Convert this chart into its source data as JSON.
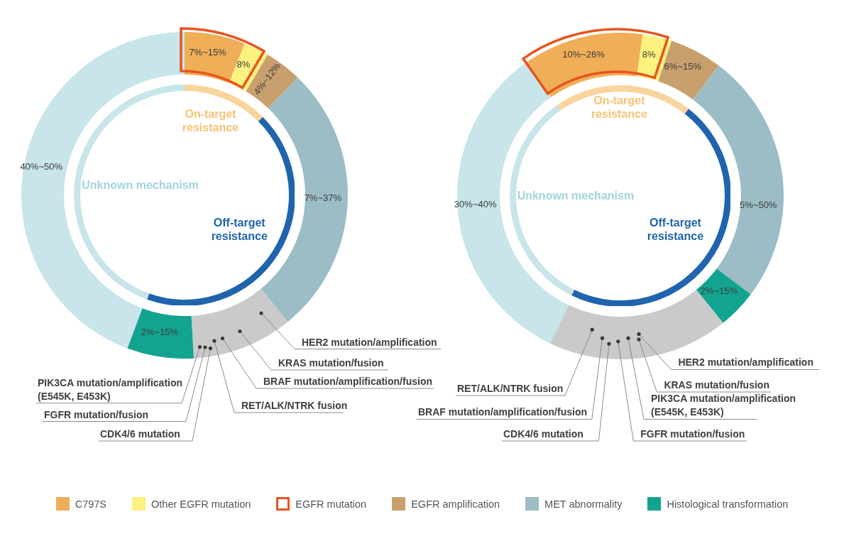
{
  "chart_data": [
    {
      "type": "donut",
      "categories": [
        "C797S",
        "Other EGFR mutation",
        "EGFR amplification",
        "MET abnormality",
        null,
        "Histological transformation",
        null
      ],
      "values": [
        6,
        2.5,
        3.7,
        26.9,
        10,
        6.6,
        44.3
      ],
      "colors": [
        "#efae57",
        "#fdf17f",
        "#c8a06e",
        "#9cbcc6",
        "#cacaca",
        "#13a391",
        "#c7e5ea"
      ],
      "annotations": [
        "7%~15%",
        "8%",
        "4%~12%",
        "7%~37%",
        "2%~15%",
        "40%~50%",
        "HER2 mutation/amplification",
        "KRAS mutation/fusion",
        "BRAF mutation/amplification/fusion",
        "RET/ALK/NTRK fusion",
        "PIK3CA mutation/amplification (E545K, E453K)",
        "FGFR mutation/fusion",
        "CDK4/6 mutation",
        "EGFR mutation"
      ],
      "legend": "bottom"
    },
    {
      "type": "donut",
      "categories": [
        "On-target resistance",
        "Off-target resistance",
        "Unknown mechanism"
      ],
      "values": [
        12.5,
        43,
        44.5
      ],
      "colors": [
        "#f9d49c",
        "#1f64ad",
        "#c7e5ea"
      ]
    },
    {
      "type": "donut",
      "categories": [
        null,
        null,
        null,
        null,
        null,
        null,
        null
      ],
      "values": [
        11.9,
        2.9,
        5.2,
        25,
        3.9,
        17.9,
        33.2
      ],
      "colors": [
        "#efae57",
        "#fdf17f",
        "#c8a06e",
        "#9cbcc6",
        "#13a391",
        "#cacaca",
        "#c7e5ea"
      ],
      "annotations": [
        "10%~26%",
        "8%",
        "6%~15%",
        "5%~50%",
        "2%~15%",
        "30%~40%",
        "HER2 mutation/amplification",
        "KRAS mutation/fusion",
        "PIK3CA mutation/amplification (E545K, E453K)",
        "FGFR mutation/fusion",
        "CDK4/6 mutation",
        "BRAF mutation/amplification/fusion",
        "RET/ALK/NTRK fusion"
      ]
    },
    {
      "type": "donut",
      "categories": [
        "On-target resistance",
        "Off-target resistance",
        "Unknown mechanism"
      ],
      "values": [
        20.3,
        46.7,
        33
      ],
      "colors": [
        "#f9d49c",
        "#1f64ad",
        "#c7e5ea"
      ]
    }
  ]
}
